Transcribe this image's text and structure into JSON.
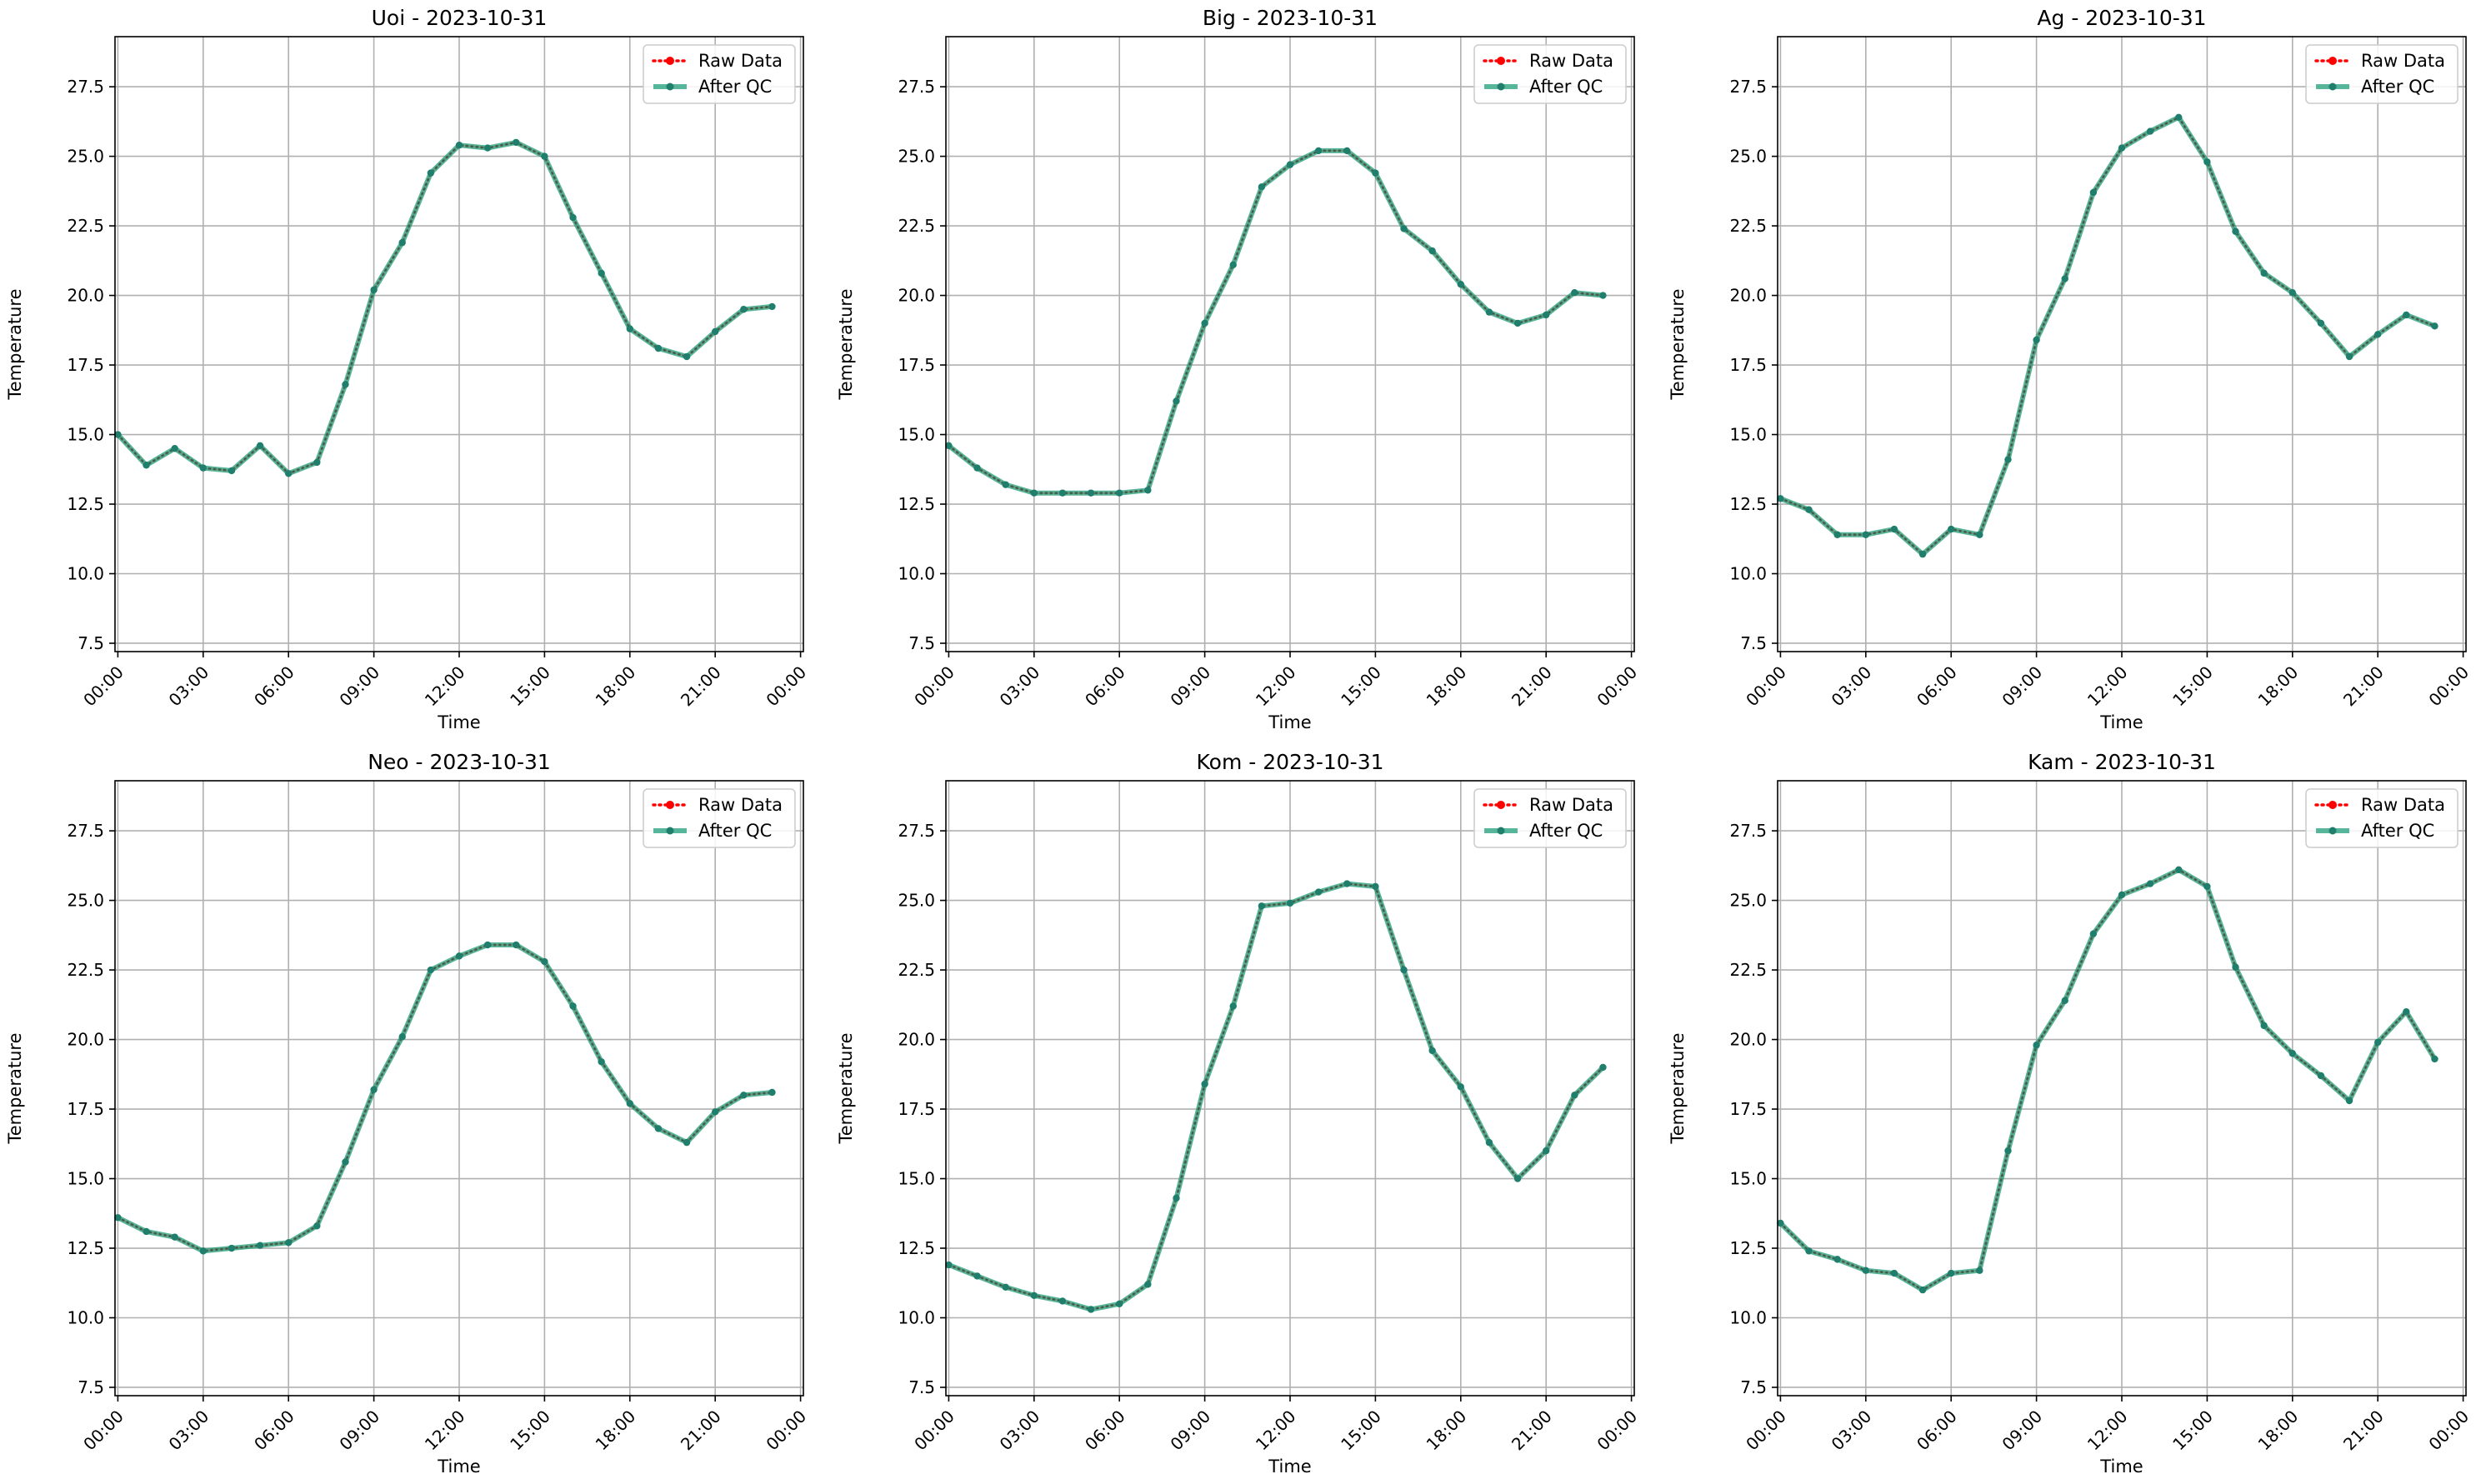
{
  "legend_labels": {
    "raw": "Raw Data",
    "qc": "After QC"
  },
  "colors": {
    "raw": "#ff0000",
    "qc": "#1f9e7a",
    "qc_marker": "#1f7f6c",
    "grid": "#b0b0b0"
  },
  "chart_data": [
    {
      "type": "line",
      "title": "Uoi - 2023-10-31",
      "xlabel": "Time",
      "ylabel": "Temperature",
      "x_ticks": [
        "00:00",
        "03:00",
        "06:00",
        "09:00",
        "12:00",
        "15:00",
        "18:00",
        "21:00",
        "00:00"
      ],
      "y_ticks": [
        "7.5",
        "10.0",
        "12.5",
        "15.0",
        "17.5",
        "20.0",
        "22.5",
        "25.0",
        "27.5"
      ],
      "ylim": [
        7.2,
        29.3
      ],
      "xlim_hours": [
        -0.1,
        24.1
      ],
      "grid": true,
      "legend_position": "upper right",
      "x_hours": [
        0,
        1,
        2,
        3,
        4,
        5,
        6,
        7,
        8,
        9,
        10,
        11,
        12,
        13,
        14,
        15,
        16,
        17,
        18,
        19,
        20,
        21,
        22,
        23
      ],
      "series": [
        {
          "name": "Raw Data",
          "values": [
            15.0,
            13.9,
            14.5,
            13.8,
            13.7,
            14.6,
            13.6,
            14.0,
            16.8,
            20.2,
            21.9,
            24.4,
            25.4,
            25.3,
            25.5,
            25.0,
            22.8,
            20.8,
            18.8,
            18.1,
            17.8,
            18.7,
            19.5,
            19.6
          ]
        },
        {
          "name": "After QC",
          "values": [
            15.0,
            13.9,
            14.5,
            13.8,
            13.7,
            14.6,
            13.6,
            14.0,
            16.8,
            20.2,
            21.9,
            24.4,
            25.4,
            25.3,
            25.5,
            25.0,
            22.8,
            20.8,
            18.8,
            18.1,
            17.8,
            18.7,
            19.5,
            19.6
          ]
        }
      ]
    },
    {
      "type": "line",
      "title": "Big - 2023-10-31",
      "xlabel": "Time",
      "ylabel": "Temperature",
      "x_ticks": [
        "00:00",
        "03:00",
        "06:00",
        "09:00",
        "12:00",
        "15:00",
        "18:00",
        "21:00",
        "00:00"
      ],
      "y_ticks": [
        "7.5",
        "10.0",
        "12.5",
        "15.0",
        "17.5",
        "20.0",
        "22.5",
        "25.0",
        "27.5"
      ],
      "ylim": [
        7.2,
        29.3
      ],
      "xlim_hours": [
        -0.1,
        24.1
      ],
      "grid": true,
      "legend_position": "upper right",
      "x_hours": [
        0,
        1,
        2,
        3,
        4,
        5,
        6,
        7,
        8,
        9,
        10,
        11,
        12,
        13,
        14,
        15,
        16,
        17,
        18,
        19,
        20,
        21,
        22,
        23
      ],
      "series": [
        {
          "name": "Raw Data",
          "values": [
            14.6,
            13.8,
            13.2,
            12.9,
            12.9,
            12.9,
            12.9,
            13.0,
            16.2,
            19.0,
            21.1,
            23.9,
            24.7,
            25.2,
            25.2,
            24.4,
            22.4,
            21.6,
            20.4,
            19.4,
            19.0,
            19.3,
            20.1,
            20.0
          ]
        },
        {
          "name": "After QC",
          "values": [
            14.6,
            13.8,
            13.2,
            12.9,
            12.9,
            12.9,
            12.9,
            13.0,
            16.2,
            19.0,
            21.1,
            23.9,
            24.7,
            25.2,
            25.2,
            24.4,
            22.4,
            21.6,
            20.4,
            19.4,
            19.0,
            19.3,
            20.1,
            20.0
          ]
        }
      ]
    },
    {
      "type": "line",
      "title": "Ag - 2023-10-31",
      "xlabel": "Time",
      "ylabel": "Temperature",
      "x_ticks": [
        "00:00",
        "03:00",
        "06:00",
        "09:00",
        "12:00",
        "15:00",
        "18:00",
        "21:00",
        "00:00"
      ],
      "y_ticks": [
        "7.5",
        "10.0",
        "12.5",
        "15.0",
        "17.5",
        "20.0",
        "22.5",
        "25.0",
        "27.5"
      ],
      "ylim": [
        7.2,
        29.3
      ],
      "xlim_hours": [
        -0.1,
        24.1
      ],
      "grid": true,
      "legend_position": "upper right",
      "x_hours": [
        0,
        1,
        2,
        3,
        4,
        5,
        6,
        7,
        8,
        9,
        10,
        11,
        12,
        13,
        14,
        15,
        16,
        17,
        18,
        19,
        20,
        21,
        22,
        23
      ],
      "series": [
        {
          "name": "Raw Data",
          "values": [
            12.7,
            12.3,
            11.4,
            11.4,
            11.6,
            10.7,
            11.6,
            11.4,
            14.1,
            18.4,
            20.6,
            23.7,
            25.3,
            25.9,
            26.4,
            24.8,
            22.3,
            20.8,
            20.1,
            19.0,
            17.8,
            18.6,
            19.3,
            18.9
          ]
        },
        {
          "name": "After QC",
          "values": [
            12.7,
            12.3,
            11.4,
            11.4,
            11.6,
            10.7,
            11.6,
            11.4,
            14.1,
            18.4,
            20.6,
            23.7,
            25.3,
            25.9,
            26.4,
            24.8,
            22.3,
            20.8,
            20.1,
            19.0,
            17.8,
            18.6,
            19.3,
            18.9
          ]
        }
      ]
    },
    {
      "type": "line",
      "title": "Neo - 2023-10-31",
      "xlabel": "Time",
      "ylabel": "Temperature",
      "x_ticks": [
        "00:00",
        "03:00",
        "06:00",
        "09:00",
        "12:00",
        "15:00",
        "18:00",
        "21:00",
        "00:00"
      ],
      "y_ticks": [
        "7.5",
        "10.0",
        "12.5",
        "15.0",
        "17.5",
        "20.0",
        "22.5",
        "25.0",
        "27.5"
      ],
      "ylim": [
        7.2,
        29.3
      ],
      "xlim_hours": [
        -0.1,
        24.1
      ],
      "grid": true,
      "legend_position": "upper right",
      "x_hours": [
        0,
        1,
        2,
        3,
        4,
        5,
        6,
        7,
        8,
        9,
        10,
        11,
        12,
        13,
        14,
        15,
        16,
        17,
        18,
        19,
        20,
        21,
        22,
        23
      ],
      "series": [
        {
          "name": "Raw Data",
          "values": [
            13.6,
            13.1,
            12.9,
            12.4,
            12.5,
            12.6,
            12.7,
            13.3,
            15.6,
            18.2,
            20.1,
            22.5,
            23.0,
            23.4,
            23.4,
            22.8,
            21.2,
            19.2,
            17.7,
            16.8,
            16.3,
            17.4,
            18.0,
            18.1
          ]
        },
        {
          "name": "After QC",
          "values": [
            13.6,
            13.1,
            12.9,
            12.4,
            12.5,
            12.6,
            12.7,
            13.3,
            15.6,
            18.2,
            20.1,
            22.5,
            23.0,
            23.4,
            23.4,
            22.8,
            21.2,
            19.2,
            17.7,
            16.8,
            16.3,
            17.4,
            18.0,
            18.1
          ]
        }
      ]
    },
    {
      "type": "line",
      "title": "Kom - 2023-10-31",
      "xlabel": "Time",
      "ylabel": "Temperature",
      "x_ticks": [
        "00:00",
        "03:00",
        "06:00",
        "09:00",
        "12:00",
        "15:00",
        "18:00",
        "21:00",
        "00:00"
      ],
      "y_ticks": [
        "7.5",
        "10.0",
        "12.5",
        "15.0",
        "17.5",
        "20.0",
        "22.5",
        "25.0",
        "27.5"
      ],
      "ylim": [
        7.2,
        29.3
      ],
      "xlim_hours": [
        -0.1,
        24.1
      ],
      "grid": true,
      "legend_position": "upper right",
      "x_hours": [
        0,
        1,
        2,
        3,
        4,
        5,
        6,
        7,
        8,
        9,
        10,
        11,
        12,
        13,
        14,
        15,
        16,
        17,
        18,
        19,
        20,
        21,
        22,
        23
      ],
      "series": [
        {
          "name": "Raw Data",
          "values": [
            11.9,
            11.5,
            11.1,
            10.8,
            10.6,
            10.3,
            10.5,
            11.2,
            14.3,
            18.4,
            21.2,
            24.8,
            24.9,
            25.3,
            25.6,
            25.5,
            22.5,
            19.6,
            18.3,
            16.3,
            15.0,
            16.0,
            18.0,
            19.0
          ]
        },
        {
          "name": "After QC",
          "values": [
            11.9,
            11.5,
            11.1,
            10.8,
            10.6,
            10.3,
            10.5,
            11.2,
            14.3,
            18.4,
            21.2,
            24.8,
            24.9,
            25.3,
            25.6,
            25.5,
            22.5,
            19.6,
            18.3,
            16.3,
            15.0,
            16.0,
            18.0,
            19.0
          ]
        }
      ]
    },
    {
      "type": "line",
      "title": "Kam - 2023-10-31",
      "xlabel": "Time",
      "ylabel": "Temperature",
      "x_ticks": [
        "00:00",
        "03:00",
        "06:00",
        "09:00",
        "12:00",
        "15:00",
        "18:00",
        "21:00",
        "00:00"
      ],
      "y_ticks": [
        "7.5",
        "10.0",
        "12.5",
        "15.0",
        "17.5",
        "20.0",
        "22.5",
        "25.0",
        "27.5"
      ],
      "ylim": [
        7.2,
        29.3
      ],
      "xlim_hours": [
        -0.1,
        24.1
      ],
      "grid": true,
      "legend_position": "upper right",
      "x_hours": [
        0,
        1,
        2,
        3,
        4,
        5,
        6,
        7,
        8,
        9,
        10,
        11,
        12,
        13,
        14,
        15,
        16,
        17,
        18,
        19,
        20,
        21,
        22,
        23
      ],
      "series": [
        {
          "name": "Raw Data",
          "values": [
            13.4,
            12.4,
            12.1,
            11.7,
            11.6,
            11.0,
            11.6,
            11.7,
            16.0,
            19.8,
            21.4,
            23.8,
            25.2,
            25.6,
            26.1,
            25.5,
            22.6,
            20.5,
            19.5,
            18.7,
            17.8,
            19.9,
            21.0,
            19.3
          ]
        },
        {
          "name": "After QC",
          "values": [
            13.4,
            12.4,
            12.1,
            11.7,
            11.6,
            11.0,
            11.6,
            11.7,
            16.0,
            19.8,
            21.4,
            23.8,
            25.2,
            25.6,
            26.1,
            25.5,
            22.6,
            20.5,
            19.5,
            18.7,
            17.8,
            19.9,
            21.0,
            19.3
          ]
        }
      ]
    }
  ]
}
